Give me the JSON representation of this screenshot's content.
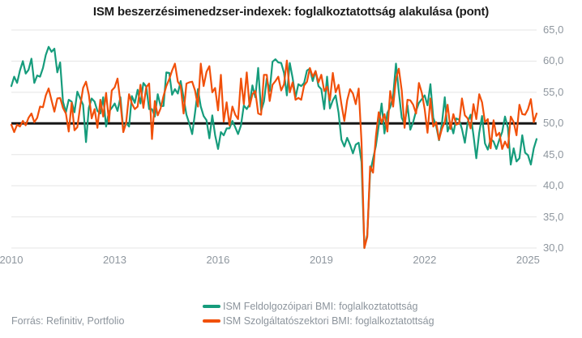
{
  "title": "ISM beszerzésimenedzser-indexek: foglalkoztatottság alakulása (pont)",
  "source": "Forrás: Refinitiv, Portfolio",
  "colors": {
    "manufacturing": "#169c7c",
    "services": "#f1500a",
    "baseline": "#161616",
    "gridline": "#e5e5e5",
    "axis_text": "#8e969e"
  },
  "legend": [
    {
      "label": "ISM Feldolgozóipari BMI: foglalkoztatottság",
      "color": "#169c7c"
    },
    {
      "label": "ISM Szolgáltatószektori BMI: foglalkoztatottság",
      "color": "#f1500a"
    }
  ],
  "chart_data": {
    "type": "line",
    "title": "ISM beszerzésimenedzser-indexek: foglalkoztatottság alakulása (pont)",
    "xlabel": "",
    "ylabel": "",
    "x_start_year": 2010,
    "x_step_months": 1,
    "x_end": "2025-04",
    "x_ticks": [
      2010,
      2013,
      2016,
      2019,
      2022,
      2025
    ],
    "y_tick_labels": [
      "65,0",
      "60,0",
      "55,0",
      "50,0",
      "45,0",
      "40,0",
      "35,0",
      "30,0"
    ],
    "y_tick_values": [
      65,
      60,
      55,
      50,
      45,
      40,
      35,
      30
    ],
    "ylim": [
      30,
      65
    ],
    "baseline_value": 50,
    "grid": "horizontal",
    "legend_position": "bottom-center",
    "series": [
      {
        "name": "ISM Feldolgozóipari BMI: foglalkoztatottság",
        "color": "#169c7c",
        "values": [
          56,
          57.5,
          56.5,
          58.5,
          60,
          58,
          58.6,
          60.4,
          56.5,
          57.7,
          57.5,
          58.9,
          61,
          62.3,
          61.5,
          62,
          58.2,
          59.8,
          53.5,
          51.8,
          53.8,
          53.5,
          51.8,
          55.1,
          54,
          53,
          47,
          52.5,
          54,
          53.5,
          52,
          51.6,
          54.2,
          49.5,
          51.9,
          52.5,
          53.2,
          52,
          54.2,
          49,
          50.1,
          49.5,
          54.4,
          53.3,
          55.4,
          53.2,
          56.5,
          55.9,
          52.3,
          52.3,
          51.1,
          54.7,
          52.8,
          52.8,
          58.2,
          58.1,
          54.6,
          55.5,
          54.8,
          56.8,
          54.1,
          51.4,
          50,
          48.3,
          51.7,
          55.5,
          52.7,
          51.2,
          50.5,
          47.6,
          51.3,
          48.1,
          45.9,
          48.6,
          48.1,
          49.2,
          49.2,
          50.4,
          49.4,
          48.3,
          49.7,
          52.9,
          52.3,
          53.1,
          56.1,
          54.2,
          58.9,
          52,
          53.5,
          57.2,
          55.2,
          59.9,
          60.3,
          59.8,
          59.7,
          58.1,
          54.5,
          59.7,
          57.3,
          54.2,
          56.3,
          56,
          56.5,
          58.5,
          58.8,
          56.8,
          58.4,
          56,
          55.5,
          52.3,
          57.5,
          52.4,
          53.7,
          54.5,
          51.7,
          47.4,
          46.3,
          47.7,
          46.6,
          45.2,
          46.6,
          46.9,
          43.8,
          30,
          32.1,
          42.1,
          44.3,
          46.4,
          49.6,
          53.2,
          48.4,
          51.7,
          52.6,
          54.4,
          59.6,
          55.1,
          50.9,
          49.9,
          52.9,
          49,
          50.2,
          52,
          53.3,
          53.9,
          54.5,
          52.9,
          56.3,
          50.9,
          49.6,
          47.3,
          49.9,
          54.2,
          48.7,
          50,
          48.4,
          50.8,
          50.6,
          49.1,
          46.9,
          50.2,
          51.4,
          48.1,
          44.4,
          48.5,
          51.2,
          46.8,
          45.8,
          47.5,
          47.1,
          45.9,
          47.4,
          48.6,
          51.1,
          49.3,
          43.4,
          46,
          43.9,
          44.4,
          48.1,
          45.3,
          44.9,
          43.4,
          46,
          47.5
        ]
      },
      {
        "name": "ISM Szolgáltatószektori BMI: foglalkoztatottság",
        "color": "#f1500a",
        "values": [
          49.8,
          48.6,
          49.8,
          49.5,
          50.4,
          49.7,
          50.9,
          51.6,
          50.2,
          50.9,
          52.7,
          52.6,
          54.5,
          55.6,
          53.7,
          51.9,
          54,
          54.1,
          52.5,
          51.6,
          48.7,
          53.3,
          48.9,
          49.4,
          52.8,
          55.7,
          56.7,
          54.6,
          50.8,
          52.3,
          49.3,
          53.8,
          51.1,
          54.9,
          50.3,
          55.3,
          55.8,
          57.2,
          53.3,
          48.6,
          50.1,
          54.7,
          53.2,
          52.3,
          52.7,
          56.2,
          52.5,
          55.8,
          56.4,
          47.5,
          53.6,
          51.3,
          52.4,
          54.4,
          56,
          57.1,
          58.5,
          59.6,
          56.7,
          56,
          51.6,
          56.4,
          56.6,
          56.7,
          55.3,
          52.7,
          59.6,
          56,
          58.3,
          59.2,
          55,
          55.7,
          52.1,
          57.8,
          50.3,
          53.4,
          49.7,
          52.7,
          51.4,
          50.7,
          57.2,
          53.1,
          58.2,
          52.7,
          54.7,
          55.2,
          51.6,
          51.4,
          57.8,
          57.8,
          53.6,
          56.2,
          56.8,
          57.5,
          55.3,
          56.3,
          60.1,
          55,
          56.6,
          53.8,
          54.1,
          53.8,
          56.1,
          56.7,
          58.9,
          57.5,
          58.4,
          56.6,
          57.8,
          55.2,
          55.9,
          53.7,
          58.1,
          55,
          56.2,
          53.1,
          50.4,
          53.7,
          55.5,
          54.8,
          53.1,
          55.6,
          47,
          30,
          31.8,
          43.1,
          42.1,
          47.9,
          51.8,
          50.1,
          51.5,
          48.7,
          55.2,
          52.7,
          57.2,
          58.8,
          55.3,
          49.3,
          53.8,
          53.7,
          53,
          51.6,
          56.5,
          54.9,
          52.3,
          48.5,
          54,
          49.5,
          50.2,
          47.4,
          49.1,
          50.2,
          53,
          49.1,
          51.5,
          49.8,
          50,
          54,
          51.3,
          50.8,
          49.2,
          53.1,
          50.7,
          54.7,
          53.4,
          50.2,
          50.7,
          46,
          50.5,
          48,
          48.5,
          45.9,
          47.1,
          46.1,
          51.1,
          50.2,
          48.1,
          53,
          51.5,
          51.4,
          52.3,
          53.9,
          50.2,
          51.6
        ]
      }
    ]
  }
}
